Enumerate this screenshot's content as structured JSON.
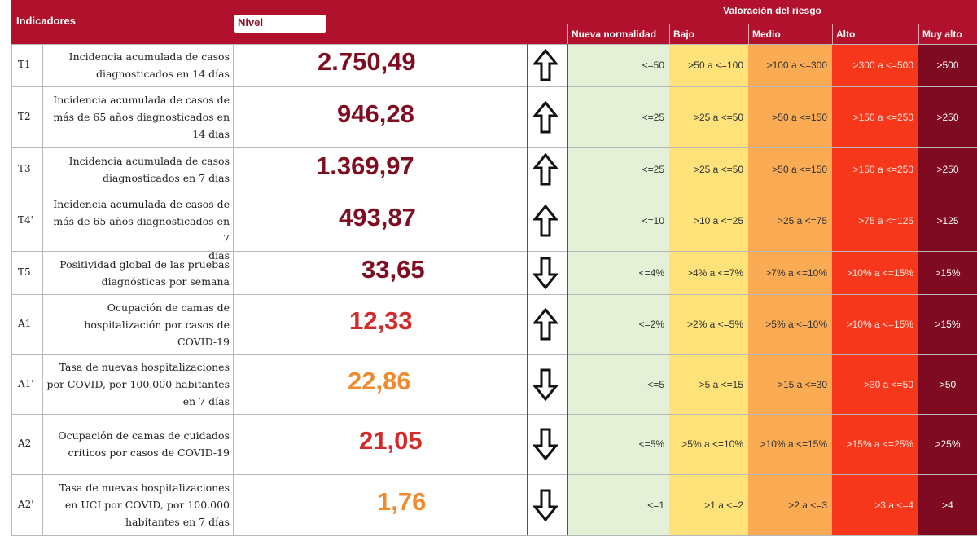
{
  "header": {
    "indicators_label": "Indicadores",
    "level_label": "Nivel",
    "risk_title": "Valoración del riesgo",
    "bands": [
      "Nueva normalidad",
      "Bajo",
      "Medio",
      "Alto",
      "Muy alto"
    ]
  },
  "colors": {
    "header_bg": "#b1112c",
    "band_colors": [
      "#e4f1d6",
      "#ffe27a",
      "#fbab53",
      "#f6371b",
      "#7e0b22"
    ],
    "value_dark": "#7e0d21",
    "value_red": "#d32a2a",
    "value_orange": "#f08a2e"
  },
  "rows": [
    {
      "code": "T1",
      "desc": [
        "Incidencia acumulada de casos",
        "diagnosticados en 14 días"
      ],
      "value": "2.750,49",
      "value_color": "#7e0d21",
      "trend": "up-arrow-icon",
      "ranges": [
        "<=50",
        ">50 a <=100",
        ">100 a <=300",
        ">300 a <=500",
        ">500"
      ]
    },
    {
      "code": "T2",
      "desc": [
        "Incidencia acumulada de casos de",
        "más de 65 años diagnosticados en",
        "14 días"
      ],
      "value": "946,28",
      "value_color": "#7e0d21",
      "trend": "up-arrow-icon",
      "ranges": [
        "<=25",
        ">25 a <=50",
        ">50 a <=150",
        ">150 a <=250",
        ">250"
      ]
    },
    {
      "code": "T3",
      "desc": [
        "Incidencia acumulada de casos",
        "diagnosticados en 7 días"
      ],
      "value": "1.369,97",
      "value_color": "#7e0d21",
      "trend": "up-arrow-icon",
      "ranges": [
        "<=25",
        ">25 a <=50",
        ">50 a <=150",
        ">150 a <=250",
        ">250"
      ]
    },
    {
      "code": "T4'",
      "desc": [
        "Incidencia acumulada de casos de",
        "más de 65 años diagnosticados en 7",
        "días"
      ],
      "value": "493,87",
      "value_color": "#7e0d21",
      "trend": "up-arrow-icon",
      "ranges": [
        "<=10",
        ">10 a <=25",
        ">25 a <=75",
        ">75 a <=125",
        ">125"
      ]
    },
    {
      "code": "T5",
      "desc": [
        "Positividad global de las pruebas",
        "diagnósticas por semana"
      ],
      "value": "33,65",
      "value_color": "#7e0d21",
      "trend": "down-arrow-icon",
      "ranges": [
        "<=4%",
        ">4% a <=7%",
        ">7% a <=10%",
        ">10% a <=15%",
        ">15%"
      ]
    },
    {
      "code": "A1",
      "desc": [
        "Ocupación de camas de",
        "hospitalización por casos de",
        "COVID-19"
      ],
      "value": "12,33",
      "value_color": "#d32a2a",
      "trend": "up-arrow-icon",
      "ranges": [
        "<=2%",
        ">2% a <=5%",
        ">5% a <=10%",
        ">10% a <=15%",
        ">15%"
      ]
    },
    {
      "code": "A1'",
      "desc": [
        "Tasa de nuevas hospitalizaciones",
        "por COVID, por 100.000 habitantes",
        "en 7 días"
      ],
      "value": "22,86",
      "value_color": "#f08a2e",
      "trend": "down-arrow-icon",
      "ranges": [
        "<=5",
        ">5 a <=15",
        ">15 a <=30",
        ">30 a <=50",
        ">50"
      ]
    },
    {
      "code": "A2",
      "desc": [
        "Ocupación de camas de cuidados",
        "críticos por casos de COVID-19"
      ],
      "value": "21,05",
      "value_color": "#d32a2a",
      "trend": "down-arrow-icon",
      "ranges": [
        "<=5%",
        ">5% a <=10%",
        ">10% a <=15%",
        ">15% a <=25%",
        ">25%"
      ]
    },
    {
      "code": "A2'",
      "desc": [
        "Tasa de nuevas hospitalizaciones",
        "en UCI por COVID, por 100.000",
        "habitantes en 7 días"
      ],
      "value": "1,76",
      "value_color": "#f08a2e",
      "trend": "down-arrow-icon",
      "ranges": [
        "<=1",
        ">1 a <=2",
        ">2 a <=3",
        ">3 a <=4",
        ">4"
      ]
    }
  ]
}
